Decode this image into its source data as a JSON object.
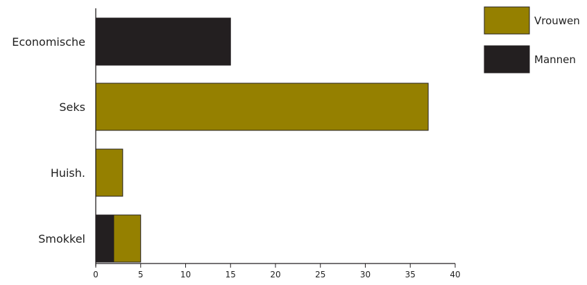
{
  "chart_data": {
    "type": "bar",
    "orientation": "horizontal",
    "stacked": true,
    "categories": [
      "Economische",
      "Seks",
      "Huish.",
      "Smokkel"
    ],
    "series": [
      {
        "name": "Mannen",
        "values": [
          15,
          0,
          0,
          2
        ],
        "color": "#231f20"
      },
      {
        "name": "Vrouwen",
        "values": [
          0,
          37,
          3,
          3
        ],
        "color": "#958000"
      }
    ],
    "xlim": [
      0,
      40
    ],
    "xticks": [
      0,
      5,
      10,
      15,
      20,
      25,
      30,
      35,
      40
    ],
    "grid": false,
    "legend_position": "top-right",
    "legend_order": [
      "Vrouwen",
      "Mannen"
    ]
  }
}
